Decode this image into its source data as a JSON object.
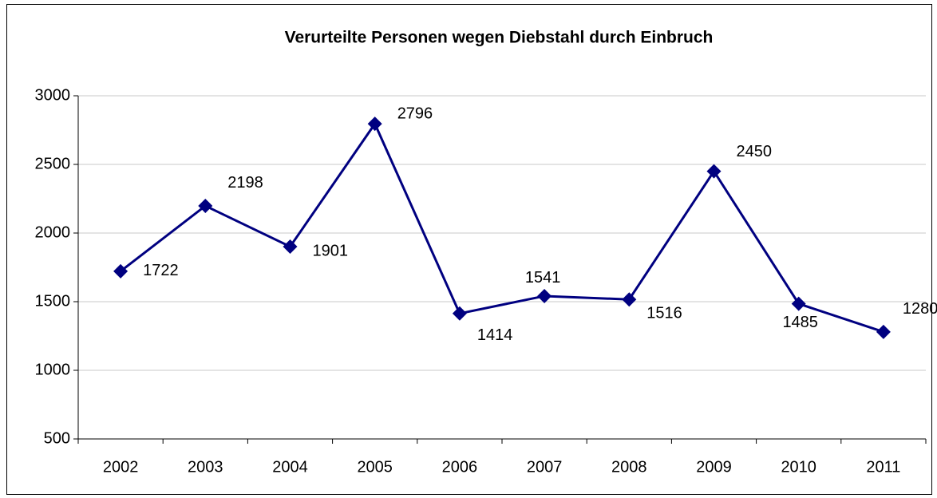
{
  "chart_data": {
    "type": "line",
    "title": "Verurteilte Personen wegen Diebstahl durch Einbruch",
    "categories": [
      "2002",
      "2003",
      "2004",
      "2005",
      "2006",
      "2007",
      "2008",
      "2009",
      "2010",
      "2011"
    ],
    "values": [
      1722,
      2198,
      1901,
      2796,
      1414,
      1541,
      1516,
      2450,
      1485,
      1280
    ],
    "color": "#000080",
    "ylim": [
      500,
      3000
    ],
    "yticks": [
      500,
      1000,
      1500,
      2000,
      2500,
      3000
    ],
    "grid": true
  }
}
